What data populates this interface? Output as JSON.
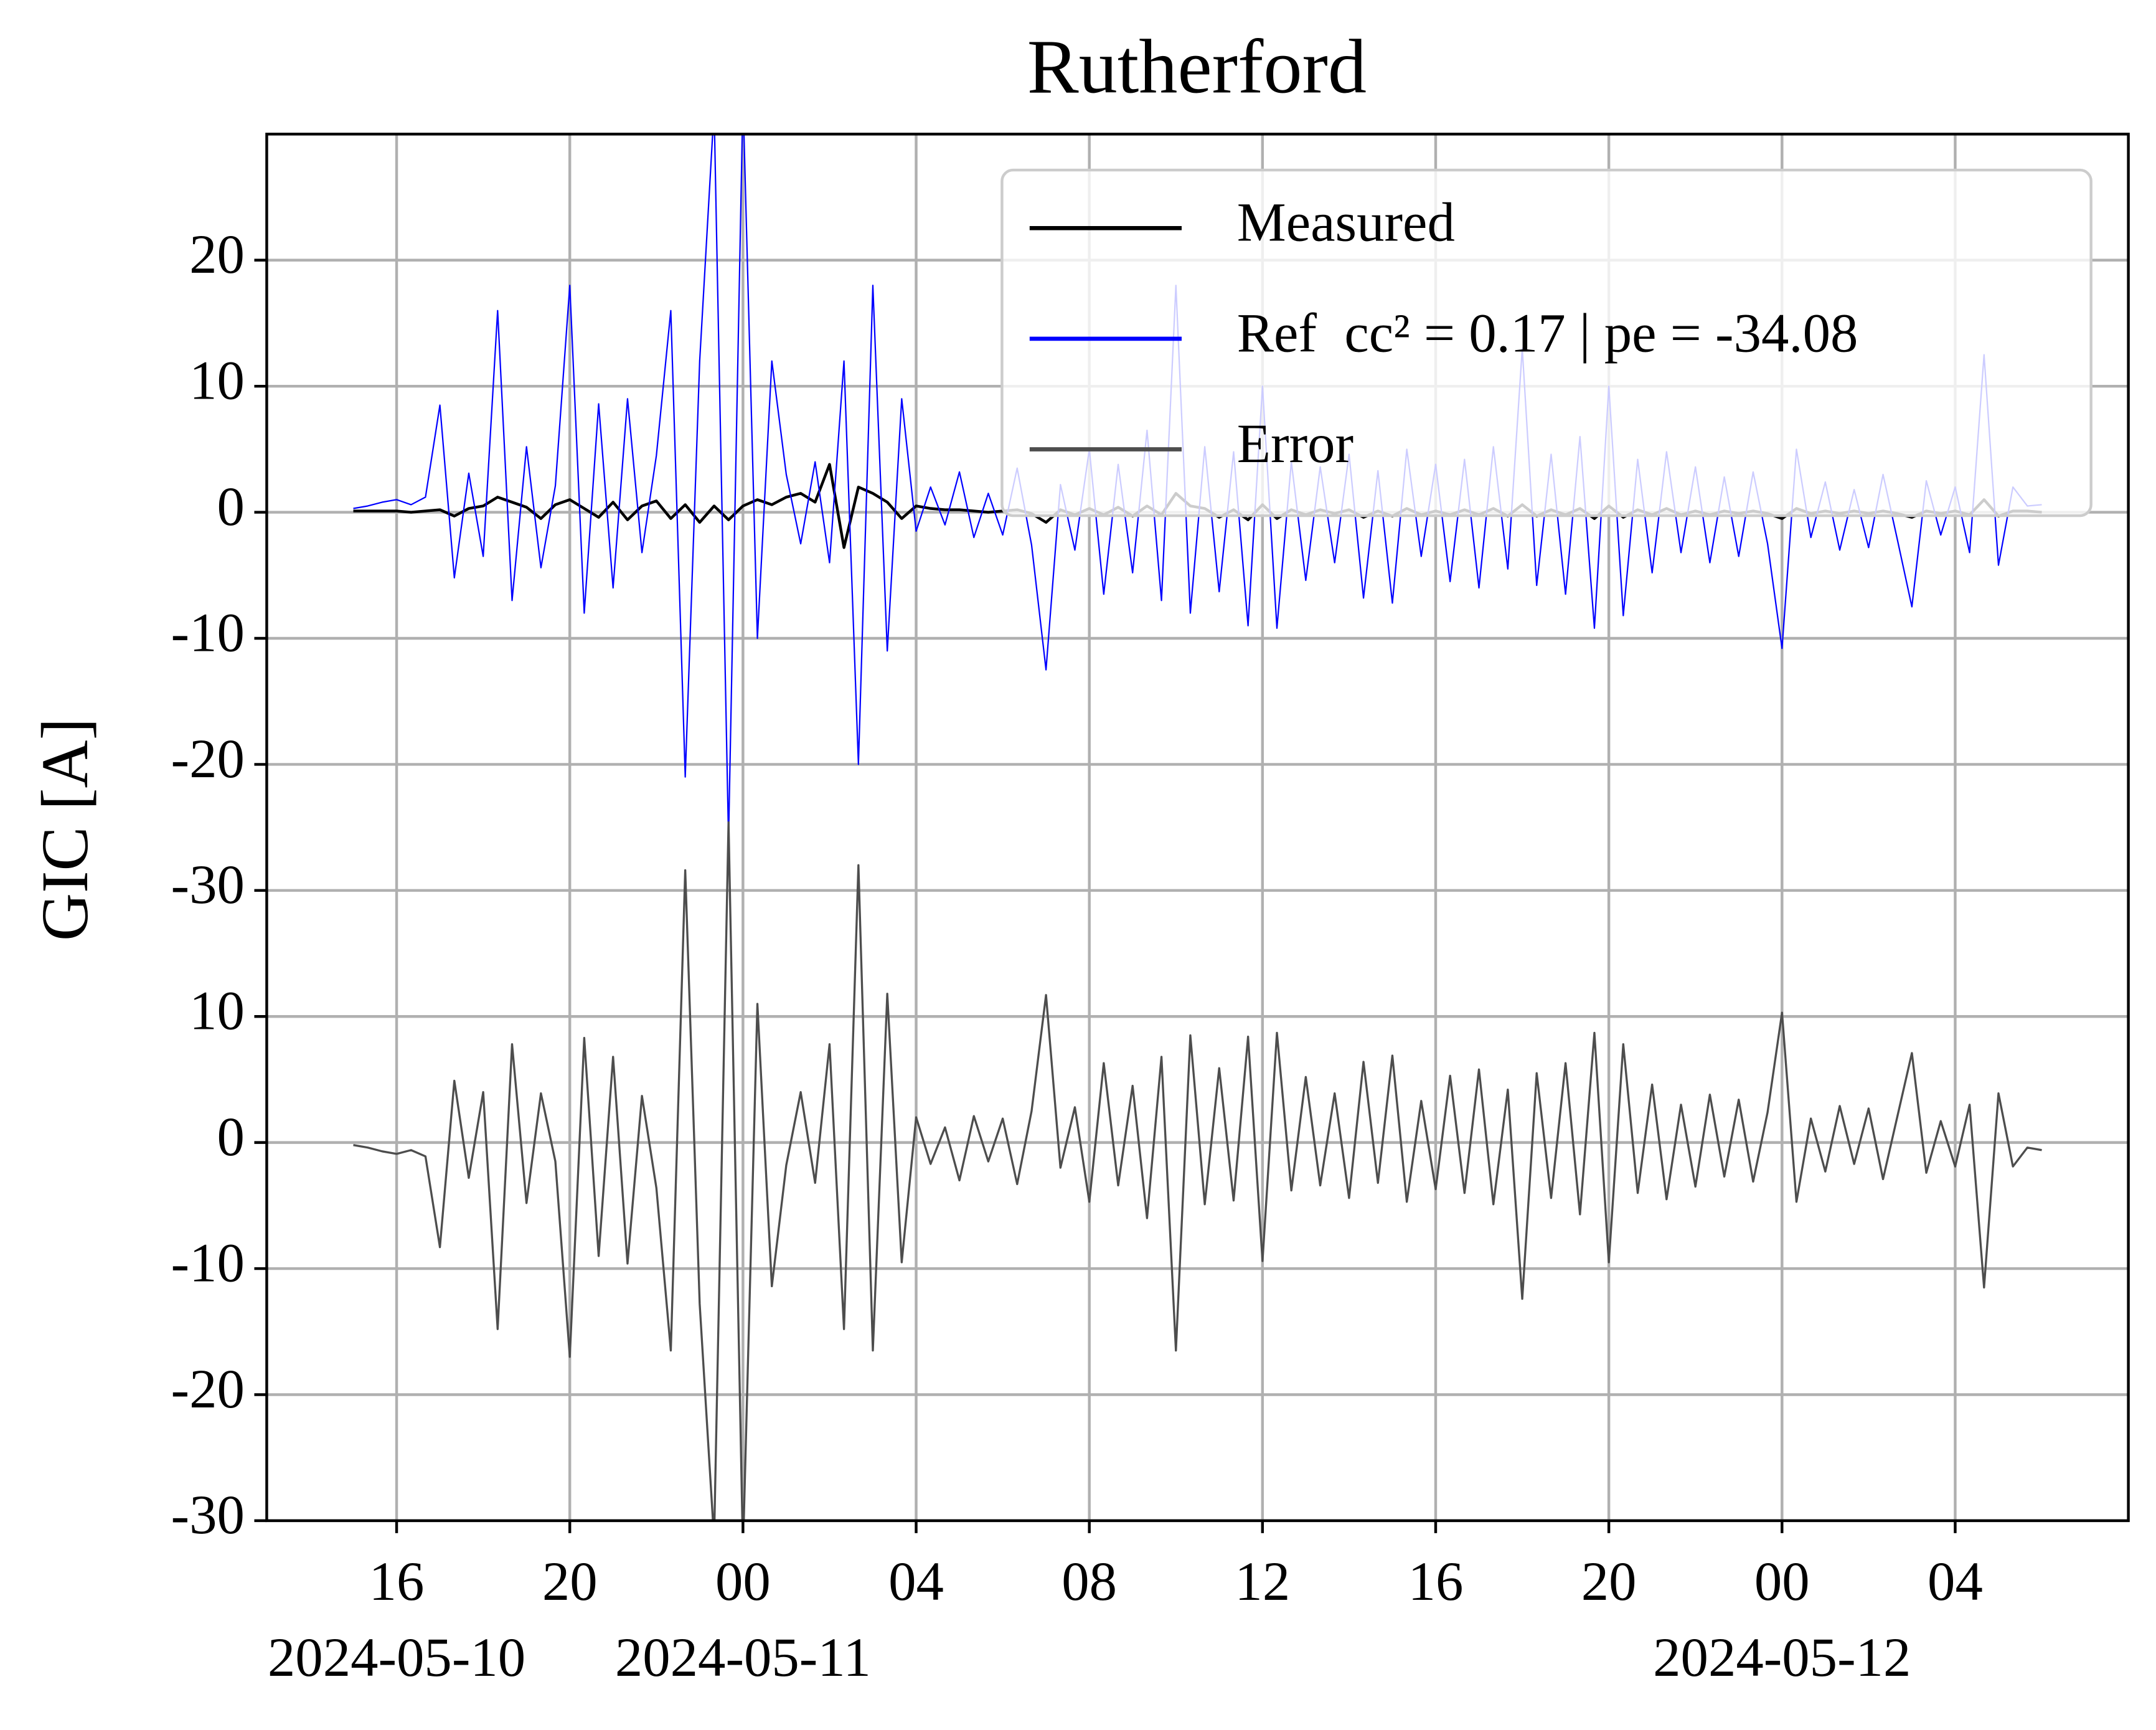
{
  "chart_data": {
    "type": "line",
    "title": "Rutherford",
    "y_label": "GIC [A]",
    "xlim": [
      "2024-05-10T13:00",
      "2024-05-12T08:00"
    ],
    "xticks": [
      {
        "value": "2024-05-10T16:00",
        "label": "16",
        "date_label": "2024-05-10"
      },
      {
        "value": "2024-05-10T20:00",
        "label": "20"
      },
      {
        "value": "2024-05-11T00:00",
        "label": "00",
        "date_label": "2024-05-11"
      },
      {
        "value": "2024-05-11T04:00",
        "label": "04"
      },
      {
        "value": "2024-05-11T08:00",
        "label": "08"
      },
      {
        "value": "2024-05-11T12:00",
        "label": "12"
      },
      {
        "value": "2024-05-11T16:00",
        "label": "16"
      },
      {
        "value": "2024-05-11T20:00",
        "label": "20"
      },
      {
        "value": "2024-05-12T00:00",
        "label": "00",
        "date_label": "2024-05-12"
      },
      {
        "value": "2024-05-12T04:00",
        "label": "04"
      }
    ],
    "ylim": [
      -80,
      30
    ],
    "yticks": [
      20,
      10,
      0,
      -10,
      -20,
      -30,
      {
        "value": -40,
        "label": "10"
      },
      {
        "value": -50,
        "label": "0"
      },
      {
        "value": -60,
        "label": "-10"
      },
      {
        "value": -70,
        "label": "-20"
      },
      {
        "value": -80,
        "label": "-30"
      }
    ],
    "grid": true,
    "legend": "upper right",
    "x": [
      "2024-05-10T15:00",
      "2024-05-10T15:20",
      "2024-05-10T15:40",
      "2024-05-10T16:00",
      "2024-05-10T16:20",
      "2024-05-10T16:40",
      "2024-05-10T17:00",
      "2024-05-10T17:20",
      "2024-05-10T17:40",
      "2024-05-10T18:00",
      "2024-05-10T18:20",
      "2024-05-10T18:40",
      "2024-05-10T19:00",
      "2024-05-10T19:20",
      "2024-05-10T19:40",
      "2024-05-10T20:00",
      "2024-05-10T20:20",
      "2024-05-10T20:40",
      "2024-05-10T21:00",
      "2024-05-10T21:20",
      "2024-05-10T21:40",
      "2024-05-10T22:00",
      "2024-05-10T22:20",
      "2024-05-10T22:40",
      "2024-05-10T23:00",
      "2024-05-10T23:20",
      "2024-05-10T23:40",
      "2024-05-11T00:00",
      "2024-05-11T00:20",
      "2024-05-11T00:40",
      "2024-05-11T01:00",
      "2024-05-11T01:20",
      "2024-05-11T01:40",
      "2024-05-11T02:00",
      "2024-05-11T02:20",
      "2024-05-11T02:40",
      "2024-05-11T03:00",
      "2024-05-11T03:20",
      "2024-05-11T03:40",
      "2024-05-11T04:00",
      "2024-05-11T04:20",
      "2024-05-11T04:40",
      "2024-05-11T05:00",
      "2024-05-11T05:20",
      "2024-05-11T05:40",
      "2024-05-11T06:00",
      "2024-05-11T06:20",
      "2024-05-11T06:40",
      "2024-05-11T07:00",
      "2024-05-11T07:20",
      "2024-05-11T07:40",
      "2024-05-11T08:00",
      "2024-05-11T08:20",
      "2024-05-11T08:40",
      "2024-05-11T09:00",
      "2024-05-11T09:20",
      "2024-05-11T09:40",
      "2024-05-11T10:00",
      "2024-05-11T10:20",
      "2024-05-11T10:40",
      "2024-05-11T11:00",
      "2024-05-11T11:20",
      "2024-05-11T11:40",
      "2024-05-11T12:00",
      "2024-05-11T12:20",
      "2024-05-11T12:40",
      "2024-05-11T13:00",
      "2024-05-11T13:20",
      "2024-05-11T13:40",
      "2024-05-11T14:00",
      "2024-05-11T14:20",
      "2024-05-11T14:40",
      "2024-05-11T15:00",
      "2024-05-11T15:20",
      "2024-05-11T15:40",
      "2024-05-11T16:00",
      "2024-05-11T16:20",
      "2024-05-11T16:40",
      "2024-05-11T17:00",
      "2024-05-11T17:20",
      "2024-05-11T17:40",
      "2024-05-11T18:00",
      "2024-05-11T18:20",
      "2024-05-11T18:40",
      "2024-05-11T19:00",
      "2024-05-11T19:20",
      "2024-05-11T19:40",
      "2024-05-11T20:00",
      "2024-05-11T20:20",
      "2024-05-11T20:40",
      "2024-05-11T21:00",
      "2024-05-11T21:20",
      "2024-05-11T21:40",
      "2024-05-11T22:00",
      "2024-05-11T22:20",
      "2024-05-11T22:40",
      "2024-05-11T23:00",
      "2024-05-11T23:20",
      "2024-05-11T23:40",
      "2024-05-12T00:00",
      "2024-05-12T00:20",
      "2024-05-12T00:40",
      "2024-05-12T01:00",
      "2024-05-12T01:20",
      "2024-05-12T01:40",
      "2024-05-12T02:00",
      "2024-05-12T02:20",
      "2024-05-12T02:40",
      "2024-05-12T03:00",
      "2024-05-12T03:20",
      "2024-05-12T03:40",
      "2024-05-12T04:00",
      "2024-05-12T04:20",
      "2024-05-12T04:40",
      "2024-05-12T05:00",
      "2024-05-12T05:20",
      "2024-05-12T05:40",
      "2024-05-12T06:00"
    ],
    "series": [
      {
        "name": "Measured",
        "color": "#000000",
        "width": 2,
        "values": [
          0.1,
          0.1,
          0.1,
          0.1,
          0,
          0.1,
          0.2,
          -0.3,
          0.3,
          0.5,
          1.2,
          0.8,
          0.4,
          -0.5,
          0.6,
          1.0,
          0.3,
          -0.4,
          0.8,
          -0.6,
          0.5,
          0.9,
          -0.5,
          0.6,
          -0.8,
          0.5,
          -0.6,
          0.5,
          1.0,
          0.6,
          1.2,
          1.5,
          0.8,
          3.8,
          -2.8,
          2.0,
          1.5,
          0.8,
          -0.5,
          0.5,
          0.3,
          0.2,
          0.2,
          0.1,
          0,
          0.1,
          0.2,
          -0.1,
          -0.8,
          0.2,
          -0.2,
          0.3,
          -0.2,
          0.4,
          -0.3,
          0.5,
          -0.2,
          1.5,
          0.5,
          0.3,
          -0.4,
          0.2,
          -0.6,
          0.6,
          -0.5,
          0.2,
          -0.2,
          0.2,
          -0.1,
          0.2,
          -0.4,
          0.1,
          -0.3,
          0.3,
          -0.2,
          0.1,
          -0.2,
          0.2,
          -0.2,
          0.3,
          -0.3,
          0.6,
          -0.3,
          0.2,
          -0.2,
          0.3,
          -0.5,
          0.5,
          -0.4,
          0.2,
          -0.2,
          0.3,
          -0.2,
          0.1,
          -0.2,
          0.1,
          -0.1,
          0.1,
          -0.1,
          -0.5,
          0.3,
          -0.1,
          0.1,
          -0.1,
          0.1,
          -0.1,
          0.1,
          -0.1,
          -0.4,
          0.1,
          -0.1,
          0.1,
          -0.2,
          1.0,
          -0.3,
          0.1,
          0.1,
          0.0
        ]
      },
      {
        "name": "Ref  cc² = 0.17 | pe = -34.08",
        "color": "#0000ff",
        "width": 1,
        "values": [
          0.3,
          0.5,
          0.8,
          1.0,
          0.6,
          1.2,
          8.5,
          -5.2,
          3.1,
          -3.5,
          16.0,
          -7.0,
          5.2,
          -4.4,
          2.1,
          18.0,
          -8.0,
          8.6,
          -6.0,
          9.0,
          -3.2,
          4.5,
          16.0,
          -21.0,
          12.0,
          32.0,
          -26.0,
          33.0,
          -10.0,
          12.0,
          3.0,
          -2.5,
          4.0,
          -4.0,
          12.0,
          -20.0,
          18.0,
          -11.0,
          9.0,
          -1.5,
          2.0,
          -1.0,
          3.2,
          -2.0,
          1.5,
          -1.8,
          3.5,
          -2.6,
          -12.5,
          2.2,
          -3.0,
          5.0,
          -6.5,
          3.8,
          -4.8,
          6.5,
          -7.0,
          18.0,
          -8.0,
          5.2,
          -6.3,
          4.8,
          -9.0,
          10.0,
          -9.2,
          4.0,
          -5.4,
          3.6,
          -4.0,
          4.6,
          -6.8,
          3.3,
          -7.2,
          5.0,
          -3.5,
          3.8,
          -5.5,
          4.2,
          -6.0,
          5.2,
          -4.5,
          13.0,
          -5.8,
          4.6,
          -6.5,
          6.0,
          -9.2,
          10.0,
          -8.2,
          4.2,
          -4.8,
          4.8,
          -3.2,
          3.6,
          -4.0,
          2.8,
          -3.5,
          3.2,
          -2.5,
          -10.8,
          5.0,
          -2.0,
          2.4,
          -3.0,
          1.8,
          -2.8,
          3.0,
          -2.2,
          -7.5,
          2.5,
          -1.8,
          2.0,
          -3.2,
          12.5,
          -4.2,
          2.0,
          0.5,
          0.6
        ]
      },
      {
        "name": "Error",
        "color": "#4d4d4d",
        "width": 1.5,
        "values": [
          -50.2,
          -50.4,
          -50.7,
          -50.9,
          -50.6,
          -51.1,
          -58.3,
          -45.1,
          -52.8,
          -46.0,
          -64.8,
          -42.2,
          -54.8,
          -46.1,
          -51.5,
          -67.0,
          -41.7,
          -59.0,
          -43.2,
          -59.6,
          -46.3,
          -53.6,
          -66.5,
          -28.4,
          -62.8,
          -81.5,
          -24.6,
          -82.5,
          -39.0,
          -61.4,
          -51.8,
          -46.0,
          -53.2,
          -42.2,
          -64.8,
          -28.0,
          -66.5,
          -38.2,
          -59.5,
          -48.0,
          -51.7,
          -48.8,
          -53.0,
          -47.9,
          -51.5,
          -48.1,
          -53.3,
          -47.5,
          -38.3,
          -52.0,
          -47.2,
          -54.7,
          -43.7,
          -53.4,
          -45.5,
          -56.0,
          -43.2,
          -66.5,
          -41.5,
          -54.9,
          -44.1,
          -54.6,
          -41.6,
          -59.4,
          -41.3,
          -53.8,
          -44.8,
          -53.4,
          -46.1,
          -54.4,
          -43.6,
          -53.2,
          -43.1,
          -54.7,
          -46.7,
          -53.7,
          -44.7,
          -54.0,
          -44.2,
          -54.9,
          -45.8,
          -62.4,
          -44.5,
          -54.4,
          -43.7,
          -55.7,
          -41.3,
          -59.5,
          -42.2,
          -54.0,
          -45.4,
          -54.5,
          -47.0,
          -53.5,
          -46.2,
          -52.7,
          -46.6,
          -53.1,
          -47.6,
          -39.7,
          -54.7,
          -48.1,
          -52.3,
          -47.1,
          -51.7,
          -47.3,
          -52.9,
          -47.9,
          -42.9,
          -52.4,
          -48.3,
          -51.9,
          -47.0,
          -61.5,
          -46.1,
          -51.9,
          -50.4,
          -50.6
        ]
      }
    ]
  }
}
